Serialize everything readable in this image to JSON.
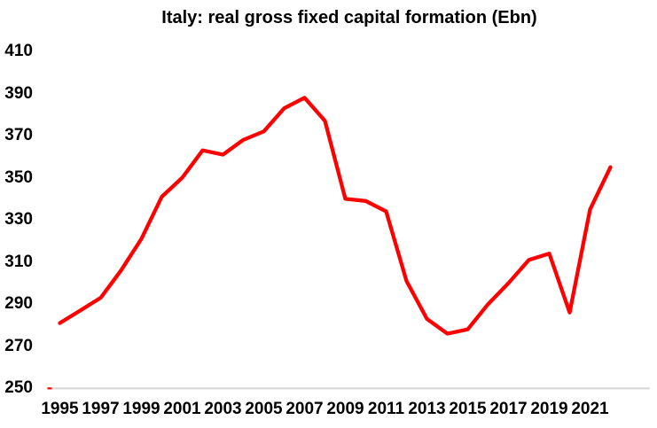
{
  "title": "Italy: real gross fixed capital formation (Ebn)",
  "colors": {
    "background": "#ffffff",
    "text": "#000000",
    "line": "#ff0000",
    "axis_line": "#d9d9d9",
    "axis_left_tick": "#ff0000"
  },
  "chart_data": {
    "type": "line",
    "title": "Italy: real gross fixed capital formation (Ebn)",
    "x": [
      1995,
      1996,
      1997,
      1998,
      1999,
      2000,
      2001,
      2002,
      2003,
      2004,
      2005,
      2006,
      2007,
      2008,
      2009,
      2010,
      2011,
      2012,
      2013,
      2014,
      2015,
      2016,
      2017,
      2018,
      2019,
      2020,
      2021,
      2022
    ],
    "values": [
      281,
      287,
      293,
      306,
      321,
      341,
      350,
      363,
      361,
      368,
      372,
      383,
      388,
      377,
      340,
      339,
      334,
      301,
      283,
      276,
      278,
      290,
      300,
      311,
      314,
      286,
      335,
      355
    ],
    "ylim": [
      250,
      410
    ],
    "yticks": [
      250,
      270,
      290,
      310,
      330,
      350,
      370,
      390,
      410
    ],
    "xticks": [
      1995,
      1997,
      1999,
      2001,
      2003,
      2005,
      2007,
      2009,
      2011,
      2013,
      2015,
      2017,
      2019,
      2021
    ],
    "xlabel": "",
    "ylabel": "",
    "grid": false,
    "legend": "none",
    "line_color": "#ff0000"
  }
}
